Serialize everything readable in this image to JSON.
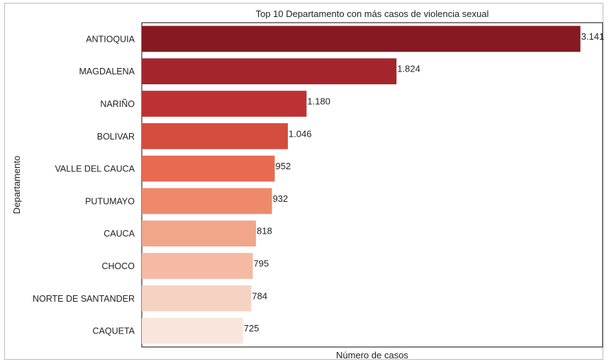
{
  "chart_data": {
    "type": "bar",
    "orientation": "horizontal",
    "title": "Top 10 Departamento con más casos de violencia sexual",
    "xlabel": "Número de casos",
    "ylabel": "Departamento",
    "categories": [
      "ANTIOQUIA",
      "MAGDALENA",
      "NARIÑO",
      "BOLIVAR",
      "VALLE DEL CAUCA",
      "PUTUMAYO",
      "CAUCA",
      "CHOCO",
      "NORTE DE SANTANDER",
      "CAQUETA"
    ],
    "values": [
      3141,
      1824,
      1180,
      1046,
      952,
      932,
      818,
      795,
      784,
      725
    ],
    "value_labels": [
      "3.141",
      "1.824",
      "1.180",
      "1.046",
      "952",
      "932",
      "818",
      "795",
      "784",
      "725"
    ],
    "colors": [
      "#861922",
      "#a4262c",
      "#bd3134",
      "#d44d3c",
      "#e76a51",
      "#ee8a6b",
      "#f1a68a",
      "#f4baa3",
      "#f6d2c3",
      "#f9e5dc"
    ],
    "xlim": [
      0,
      3300
    ],
    "grid": false,
    "legend": "none"
  }
}
